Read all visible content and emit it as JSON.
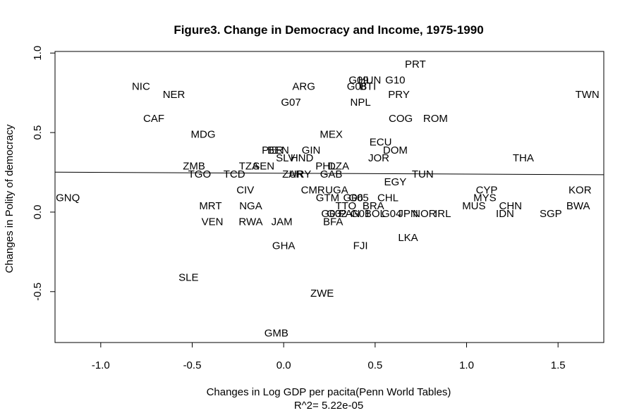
{
  "chart_data": {
    "type": "scatter",
    "title": "Figure3. Change in Democracy and Income, 1975-1990",
    "xlabel": "Changes in Log GDP per pacita(Penn World Tables)",
    "ylabel": "Changes in Polity of democracy",
    "subtitle": "R^2= 5.22e-05",
    "xlim": [
      -1.25,
      1.75
    ],
    "ylim": [
      -0.82,
      1.01
    ],
    "xticks": [
      "-1.0",
      "-0.5",
      "0.0",
      "0.5",
      "1.0",
      "1.5"
    ],
    "xtick_values": [
      -1.0,
      -0.5,
      0.0,
      0.5,
      1.0,
      1.5
    ],
    "yticks": [
      "-0.5",
      "0.0",
      "0.5",
      "1.0"
    ],
    "ytick_values": [
      -0.5,
      0.0,
      0.5,
      1.0
    ],
    "fit_line": {
      "x": [
        -1.25,
        1.75
      ],
      "y": [
        0.251,
        0.235
      ]
    },
    "points": [
      {
        "label": "PRT",
        "x": 0.72,
        "y": 0.93
      },
      {
        "label": "G09",
        "x": 0.41,
        "y": 0.83
      },
      {
        "label": "HUN",
        "x": 0.47,
        "y": 0.83
      },
      {
        "label": "G10",
        "x": 0.61,
        "y": 0.83
      },
      {
        "label": "NIC",
        "x": -0.78,
        "y": 0.79
      },
      {
        "label": "ARG",
        "x": 0.11,
        "y": 0.79
      },
      {
        "label": "G08",
        "x": 0.4,
        "y": 0.79
      },
      {
        "label": "BTI",
        "x": 0.46,
        "y": 0.79
      },
      {
        "label": "NER",
        "x": -0.6,
        "y": 0.74
      },
      {
        "label": "PRY",
        "x": 0.63,
        "y": 0.74
      },
      {
        "label": "TWN",
        "x": 1.66,
        "y": 0.74
      },
      {
        "label": "G07",
        "x": 0.04,
        "y": 0.69
      },
      {
        "label": "NPL",
        "x": 0.42,
        "y": 0.69
      },
      {
        "label": "CAF",
        "x": -0.71,
        "y": 0.59
      },
      {
        "label": "COG",
        "x": 0.64,
        "y": 0.59
      },
      {
        "label": "ROM",
        "x": 0.83,
        "y": 0.59
      },
      {
        "label": "MDG",
        "x": -0.44,
        "y": 0.49
      },
      {
        "label": "MEX",
        "x": 0.26,
        "y": 0.49
      },
      {
        "label": "ECU",
        "x": 0.53,
        "y": 0.44
      },
      {
        "label": "PER",
        "x": -0.06,
        "y": 0.39
      },
      {
        "label": "BEN",
        "x": -0.03,
        "y": 0.39
      },
      {
        "label": "GIN",
        "x": 0.15,
        "y": 0.39
      },
      {
        "label": "DOM",
        "x": 0.61,
        "y": 0.39
      },
      {
        "label": "SLV",
        "x": 0.01,
        "y": 0.34
      },
      {
        "label": "HND",
        "x": 0.1,
        "y": 0.34
      },
      {
        "label": "JOR",
        "x": 0.52,
        "y": 0.34
      },
      {
        "label": "THA",
        "x": 1.31,
        "y": 0.34
      },
      {
        "label": "ZMB",
        "x": -0.49,
        "y": 0.29
      },
      {
        "label": "TZA",
        "x": -0.19,
        "y": 0.29
      },
      {
        "label": "SEN",
        "x": -0.11,
        "y": 0.29
      },
      {
        "label": "PHL",
        "x": 0.23,
        "y": 0.29
      },
      {
        "label": "DZA",
        "x": 0.3,
        "y": 0.29
      },
      {
        "label": "TGO",
        "x": -0.46,
        "y": 0.24
      },
      {
        "label": "TCD",
        "x": -0.27,
        "y": 0.24
      },
      {
        "label": "ZAR",
        "x": 0.05,
        "y": 0.24
      },
      {
        "label": "URY",
        "x": 0.09,
        "y": 0.24
      },
      {
        "label": "GAB",
        "x": 0.26,
        "y": 0.24
      },
      {
        "label": "TUN",
        "x": 0.76,
        "y": 0.24
      },
      {
        "label": "EGY",
        "x": 0.61,
        "y": 0.19
      },
      {
        "label": "CIV",
        "x": -0.21,
        "y": 0.14
      },
      {
        "label": "CMR",
        "x": 0.16,
        "y": 0.14
      },
      {
        "label": "UGA",
        "x": 0.29,
        "y": 0.14
      },
      {
        "label": "CYP",
        "x": 1.11,
        "y": 0.14
      },
      {
        "label": "KOR",
        "x": 1.62,
        "y": 0.14
      },
      {
        "label": "GNQ",
        "x": -1.18,
        "y": 0.09
      },
      {
        "label": "GTM",
        "x": 0.24,
        "y": 0.09
      },
      {
        "label": "G06",
        "x": 0.38,
        "y": 0.09
      },
      {
        "label": "G05",
        "x": 0.41,
        "y": 0.09
      },
      {
        "label": "CHL",
        "x": 0.57,
        "y": 0.09
      },
      {
        "label": "MYS",
        "x": 1.1,
        "y": 0.09
      },
      {
        "label": "MRT",
        "x": -0.4,
        "y": 0.04
      },
      {
        "label": "NGA",
        "x": -0.18,
        "y": 0.04
      },
      {
        "label": "TTO",
        "x": 0.34,
        "y": 0.04
      },
      {
        "label": "BRA",
        "x": 0.49,
        "y": 0.04
      },
      {
        "label": "MUS",
        "x": 1.04,
        "y": 0.04
      },
      {
        "label": "CHN",
        "x": 1.24,
        "y": 0.04
      },
      {
        "label": "BWA",
        "x": 1.61,
        "y": 0.04
      },
      {
        "label": "G03",
        "x": 0.26,
        "y": -0.01
      },
      {
        "label": "G02",
        "x": 0.29,
        "y": -0.01
      },
      {
        "label": "PAN",
        "x": 0.36,
        "y": -0.01
      },
      {
        "label": "G01",
        "x": 0.42,
        "y": -0.01
      },
      {
        "label": "BOL",
        "x": 0.5,
        "y": -0.01
      },
      {
        "label": "G04",
        "x": 0.59,
        "y": -0.01
      },
      {
        "label": "JPN",
        "x": 0.68,
        "y": -0.01
      },
      {
        "label": "NOR",
        "x": 0.77,
        "y": -0.01
      },
      {
        "label": "IRL",
        "x": 0.87,
        "y": -0.01
      },
      {
        "label": "IDN",
        "x": 1.21,
        "y": -0.01
      },
      {
        "label": "SGP",
        "x": 1.46,
        "y": -0.01
      },
      {
        "label": "VEN",
        "x": -0.39,
        "y": -0.06
      },
      {
        "label": "RWA",
        "x": -0.18,
        "y": -0.06
      },
      {
        "label": "JAM",
        "x": -0.01,
        "y": -0.06
      },
      {
        "label": "BFA",
        "x": 0.27,
        "y": -0.06
      },
      {
        "label": "LKA",
        "x": 0.68,
        "y": -0.16
      },
      {
        "label": "GHA",
        "x": 0.0,
        "y": -0.21
      },
      {
        "label": "FJI",
        "x": 0.42,
        "y": -0.21
      },
      {
        "label": "SLE",
        "x": -0.52,
        "y": -0.41
      },
      {
        "label": "ZWE",
        "x": 0.21,
        "y": -0.51
      },
      {
        "label": "GMB",
        "x": -0.04,
        "y": -0.76
      }
    ]
  }
}
